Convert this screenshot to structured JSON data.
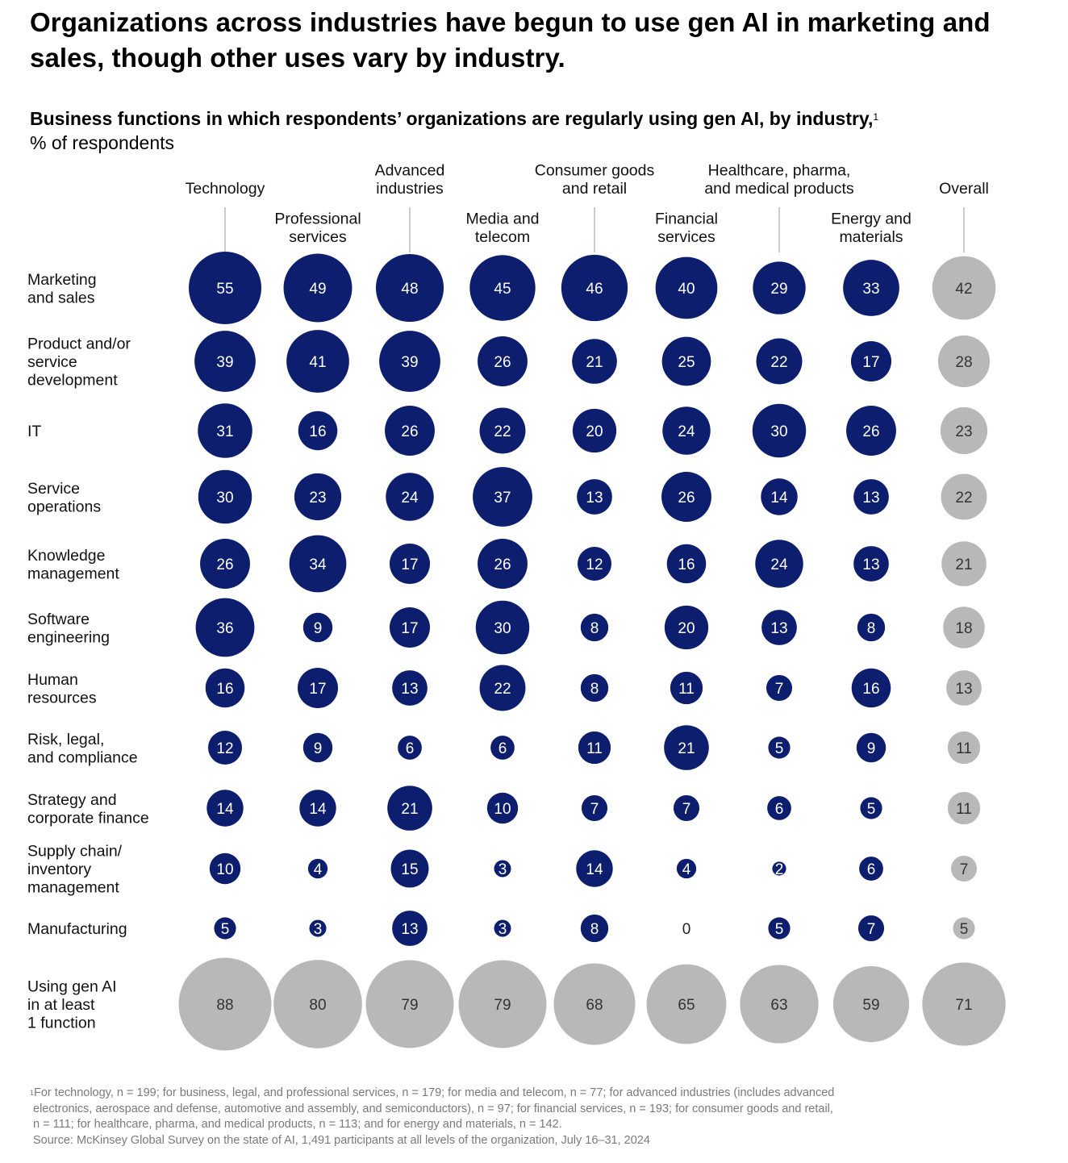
{
  "headline": "Organizations across industries have begun to use gen AI in marketing and sales, though other uses vary by industry.",
  "subtitle": "Business functions in which respondents’ organizations are regularly using gen AI, by industry,",
  "subtitle_footnote_mark": "1",
  "unit": "% of respondents",
  "colors": {
    "industry": "#0d1e6e",
    "overall": "#b8b8b8",
    "bubble_text_light": "#ffffff",
    "bubble_text_dark": "#333333",
    "footnote": "#7a7a7a"
  },
  "chart_data": {
    "type": "bubble-matrix",
    "title": "Business functions in which respondents’ organizations are regularly using gen AI, by industry,",
    "unit": "% of respondents",
    "columns": [
      {
        "name": [
          "Technology"
        ],
        "color": "industry"
      },
      {
        "name": [
          "Professional",
          "services"
        ],
        "color": "industry"
      },
      {
        "name": [
          "Advanced",
          "industries"
        ],
        "color": "industry"
      },
      {
        "name": [
          "Media and",
          "telecom"
        ],
        "color": "industry"
      },
      {
        "name": [
          "Consumer goods",
          "and retail"
        ],
        "color": "industry"
      },
      {
        "name": [
          "Financial",
          "services"
        ],
        "color": "industry"
      },
      {
        "name": [
          "Healthcare, pharma,",
          "and medical products"
        ],
        "color": "industry"
      },
      {
        "name": [
          "Energy and",
          "materials"
        ],
        "color": "industry"
      },
      {
        "name": [
          "Overall"
        ],
        "color": "overall"
      }
    ],
    "rows": [
      {
        "label": [
          "Marketing",
          "and sales"
        ],
        "values": [
          55,
          49,
          48,
          45,
          46,
          40,
          29,
          33,
          42
        ]
      },
      {
        "label": [
          "Product and/or",
          "service",
          "development"
        ],
        "values": [
          39,
          41,
          39,
          26,
          21,
          25,
          22,
          17,
          28
        ]
      },
      {
        "label": [
          "IT"
        ],
        "values": [
          31,
          16,
          26,
          22,
          20,
          24,
          30,
          26,
          23
        ]
      },
      {
        "label": [
          "Service",
          "operations"
        ],
        "values": [
          30,
          23,
          24,
          37,
          13,
          26,
          14,
          13,
          22
        ]
      },
      {
        "label": [
          "Knowledge",
          "management"
        ],
        "values": [
          26,
          34,
          17,
          26,
          12,
          16,
          24,
          13,
          21
        ]
      },
      {
        "label": [
          "Software",
          "engineering"
        ],
        "values": [
          36,
          9,
          17,
          30,
          8,
          20,
          13,
          8,
          18
        ]
      },
      {
        "label": [
          "Human",
          "resources"
        ],
        "values": [
          16,
          17,
          13,
          22,
          8,
          11,
          7,
          16,
          13
        ]
      },
      {
        "label": [
          "Risk, legal,",
          "and compliance"
        ],
        "values": [
          12,
          9,
          6,
          6,
          11,
          21,
          5,
          9,
          11
        ]
      },
      {
        "label": [
          "Strategy and",
          "corporate finance"
        ],
        "values": [
          14,
          14,
          21,
          10,
          7,
          7,
          6,
          5,
          11
        ]
      },
      {
        "label": [
          "Supply chain/",
          "inventory",
          "management"
        ],
        "values": [
          10,
          4,
          15,
          3,
          14,
          4,
          2,
          6,
          7
        ]
      },
      {
        "label": [
          "Manufacturing"
        ],
        "values": [
          5,
          3,
          13,
          3,
          8,
          0,
          5,
          7,
          5
        ]
      }
    ],
    "summary_row": {
      "label": [
        "Using gen AI",
        "in at least",
        "1 function"
      ],
      "values": [
        88,
        80,
        79,
        79,
        68,
        65,
        63,
        59,
        71
      ],
      "color": "overall"
    }
  },
  "footnote": {
    "mark": "1",
    "lines": [
      "For technology, n = 199; for business, legal, and professional services, n = 179; for media and telecom, n = 77; for advanced industries (includes advanced",
      "electronics, aerospace and defense, automotive and assembly, and semiconductors), n = 97; for financial services, n = 193; for consumer goods and retail,",
      "n = 111; for healthcare, pharma, and medical products, n = 113; and for energy and materials, n = 142."
    ],
    "source": "Source: McKinsey Global Survey on the state of AI, 1,491 participants at all levels of the organization, July 16–31, 2024"
  }
}
